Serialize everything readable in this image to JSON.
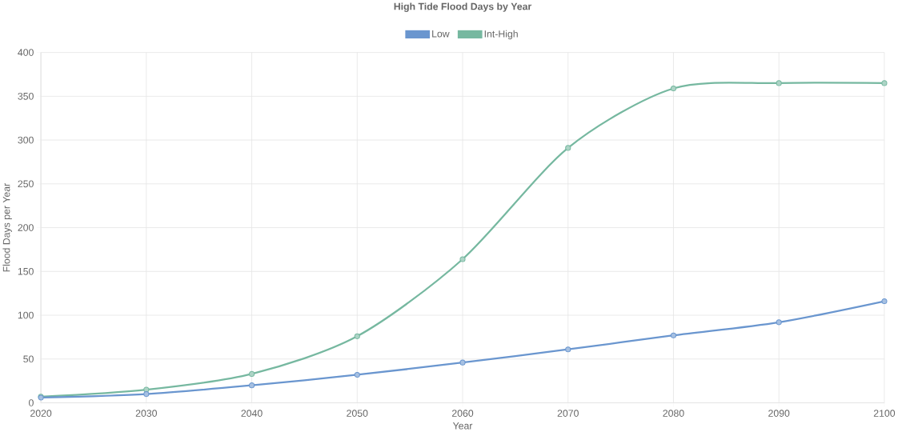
{
  "chart_data": {
    "type": "line",
    "title": "High Tide Flood Days by Year",
    "xlabel": "Year",
    "ylabel": "Flood Days per Year",
    "categories": [
      "2020",
      "2030",
      "2040",
      "2050",
      "2060",
      "2070",
      "2080",
      "2090",
      "2100"
    ],
    "series": [
      {
        "name": "Low",
        "color": "#6a96cf",
        "values": [
          6,
          10,
          20,
          32,
          46,
          61,
          77,
          92,
          116
        ]
      },
      {
        "name": "Int-High",
        "color": "#76b8a0",
        "values": [
          7,
          15,
          33,
          76,
          164,
          291,
          359,
          365,
          365
        ]
      }
    ],
    "ylim": [
      0,
      400
    ],
    "yticks": [
      0,
      50,
      100,
      150,
      200,
      250,
      300,
      350,
      400
    ],
    "grid": true,
    "legend": "top",
    "marker": "circle",
    "line_style": "solid"
  }
}
